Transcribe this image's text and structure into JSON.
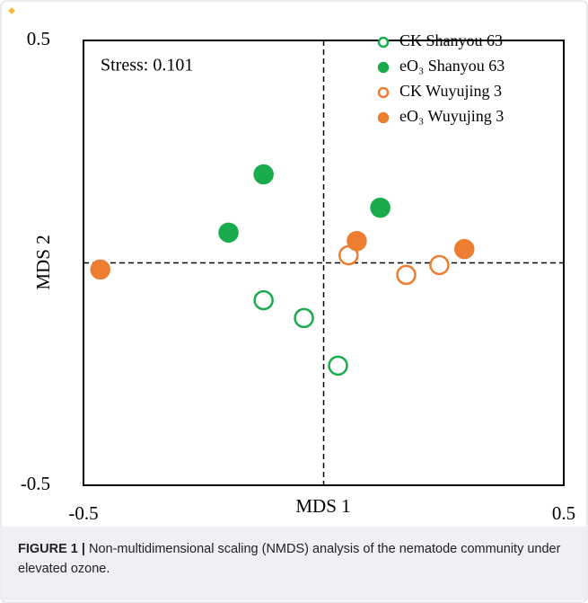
{
  "chart_data": {
    "type": "scatter",
    "xlabel": "MDS 1",
    "ylabel": "MDS 2",
    "annotation": "Stress: 0.101",
    "xlim": [
      -0.5,
      0.5
    ],
    "ylim": [
      -0.5,
      0.5
    ],
    "xticks": [
      -0.5,
      0.5
    ],
    "yticks": [
      -0.5,
      0.5
    ],
    "zero_lines": true,
    "legend": "upper right",
    "series": [
      {
        "name": "CK Shanyou 63",
        "color": "#1aab4c",
        "marker": "open",
        "x": [
          -0.125,
          -0.041,
          0.03
        ],
        "values": [
          -0.084,
          -0.124,
          -0.231
        ]
      },
      {
        "name": "eO₃ Shanyou 63",
        "color": "#1aab4c",
        "marker": "filled",
        "x": [
          -0.125,
          -0.198,
          0.118
        ],
        "values": [
          0.199,
          0.068,
          0.124
        ]
      },
      {
        "name": "CK Wuyujing 3",
        "color": "#ed7d31",
        "marker": "open",
        "x": [
          0.052,
          0.172,
          0.241
        ],
        "values": [
          0.017,
          -0.027,
          -0.005
        ]
      },
      {
        "name": "eO₃ Wuyujing 3",
        "color": "#ed7d31",
        "marker": "filled",
        "x": [
          -0.465,
          0.069,
          0.293
        ],
        "values": [
          -0.015,
          0.049,
          0.031
        ]
      }
    ]
  },
  "caption": {
    "label": "FIGURE 1 |",
    "text": "Non-multidimensional scaling (NMDS) analysis of the nematode community under elevated ozone."
  }
}
